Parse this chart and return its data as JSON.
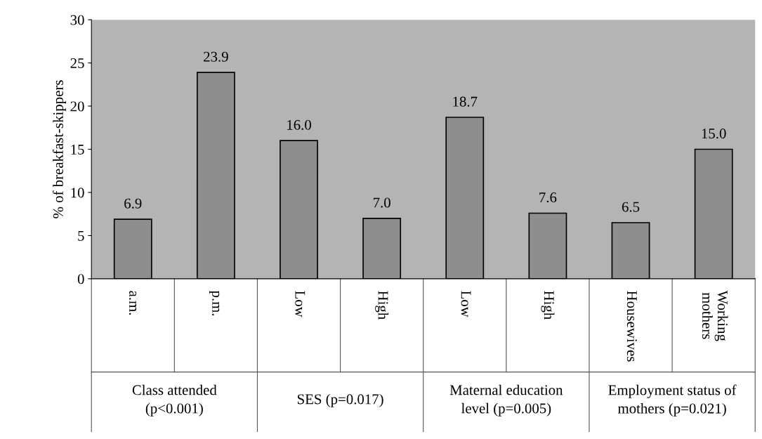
{
  "chart_data": {
    "type": "bar",
    "ylabel": "% of breakfast-skippers",
    "categories": [
      "a.m.",
      "p.m.",
      "Low",
      "High",
      "Low",
      "High",
      "Housewives",
      "Working\nmothers"
    ],
    "values": [
      6.9,
      23.9,
      16.0,
      7.0,
      18.7,
      7.6,
      6.5,
      15.0
    ],
    "value_labels": [
      "6.9",
      "23.9",
      "16.0",
      "7.0",
      "18.7",
      "7.6",
      "6.5",
      "15.0"
    ],
    "color": "#8e8e8e",
    "ylim": [
      0,
      30
    ],
    "yticks": [
      0,
      5,
      10,
      15,
      20,
      25,
      30
    ],
    "grid": false,
    "legend": false,
    "annotations": [
      "Class attended\n(p<0.001)",
      "SES (p=0.017)",
      "Maternal education\nlevel (p=0.005)",
      "Employment status of\nmothers (p=0.021)"
    ]
  }
}
